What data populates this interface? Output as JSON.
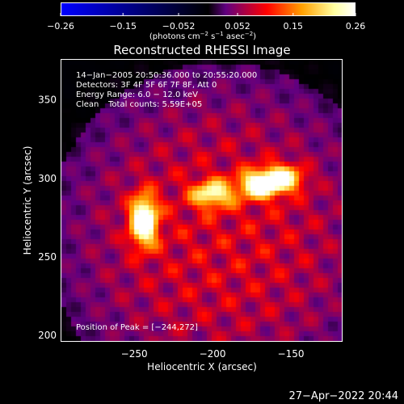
{
  "chart_data": {
    "type": "heatmap",
    "title": "Reconstructed RHESSI Image",
    "xlabel": "Heliocentric X (arcsec)",
    "ylabel": "Heliocentric Y (arcsec)",
    "xlim": [
      -297,
      -117
    ],
    "ylim": [
      196,
      376
    ],
    "x_ticks": [
      -250,
      -200,
      -150
    ],
    "x_tick_labels": [
      "−250",
      "−200",
      "−150"
    ],
    "y_ticks": [
      200,
      250,
      300,
      350
    ],
    "y_tick_labels": [
      "200",
      "250",
      "300",
      "350"
    ],
    "colorbar": {
      "range": [
        -0.26,
        0.26
      ],
      "ticks": [
        -0.26,
        -0.15,
        -0.052,
        0.052,
        0.15,
        0.26
      ],
      "tick_labels": [
        "−0.26",
        "−0.15",
        "−0.052",
        "0.052",
        "0.15",
        "0.26"
      ],
      "units_text": "(photons cm",
      "units_sup1": "−2",
      "units_mid": " s",
      "units_sup2": "−1",
      "units_mid2": " asec",
      "units_sup3": "−2",
      "units_end": ")",
      "colors": [
        "#0000ff",
        "#000000",
        "#600080",
        "#ff0000",
        "#ffa000",
        "#ffffa0",
        "#ffffff"
      ]
    },
    "annotations": [
      "14−Jan−2005 20:50:36.000 to 20:55:20.000",
      "Detectors: 3F 4F 5F 6F 7F 8F, Att 0",
      "Energy Range: 6.0 − 12.0 keV",
      "Clean",
      "Total counts: 5.59E+05"
    ],
    "peak_label": "Position of Peak = [−244,272]",
    "peak": [
      -244,
      272
    ],
    "sources": [
      {
        "x": -244,
        "y": 273,
        "amplitude": 0.26
      },
      {
        "x": -200,
        "y": 290,
        "amplitude": 0.17
      },
      {
        "x": -170,
        "y": 296,
        "amplitude": 0.21
      },
      {
        "x": -155,
        "y": 300,
        "amplitude": 0.18
      }
    ]
  },
  "timestamp": "27−Apr−2022 20:44"
}
